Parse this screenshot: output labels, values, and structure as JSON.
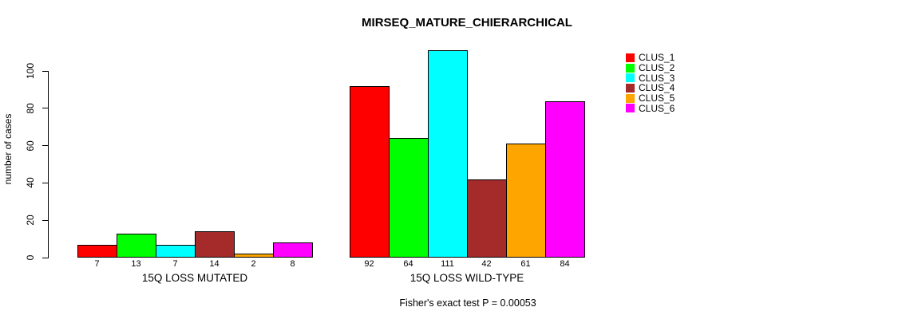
{
  "chart_data": {
    "type": "bar",
    "title": "MIRSEQ_MATURE_CHIERARCHICAL",
    "ylabel": "number of cases",
    "xlabel": "",
    "ylim": [
      0,
      100
    ],
    "yticks": [
      0,
      20,
      40,
      60,
      80,
      100
    ],
    "grid": false,
    "legend_position": "right",
    "clusters": [
      "CLUS_1",
      "CLUS_2",
      "CLUS_3",
      "CLUS_4",
      "CLUS_5",
      "CLUS_6"
    ],
    "colors": [
      "#FF0000",
      "#00FF00",
      "#00FFFF",
      "#A52A2A",
      "#FFA500",
      "#FF00FF"
    ],
    "groups": [
      {
        "label": "15Q LOSS MUTATED",
        "values": [
          7,
          13,
          7,
          14,
          2,
          8
        ]
      },
      {
        "label": "15Q LOSS WILD-TYPE",
        "values": [
          92,
          64,
          111,
          42,
          61,
          84
        ]
      }
    ],
    "annotation": "Fisher's exact test P = 0.00053"
  }
}
